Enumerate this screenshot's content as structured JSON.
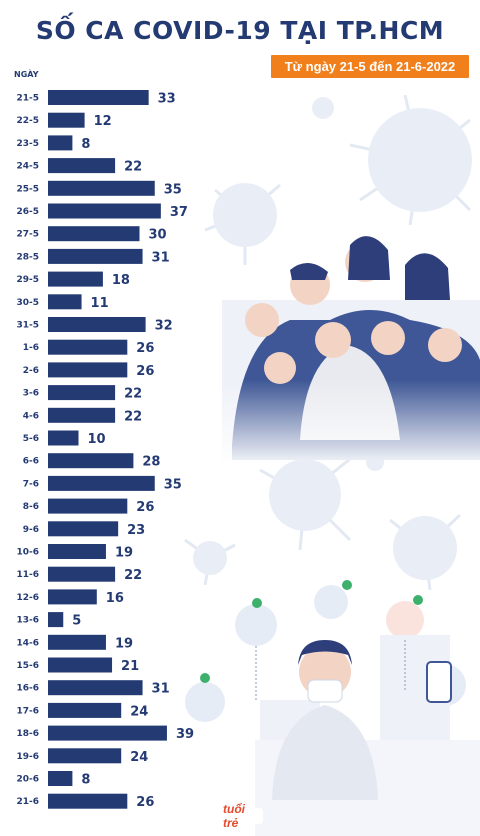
{
  "header": {
    "title": "SỐ CA COVID-19 TẠI TP.HCM",
    "subtitle": "Từ ngày 21-5 đến 21-6-2022",
    "axis_label": "NGÀY"
  },
  "footer": {
    "logo_text": "tuổi trẻ"
  },
  "colors": {
    "bar": "#243a73",
    "title": "#243a73",
    "subtitle_bg": "#f07f1c",
    "illustration": "#dfe6f2"
  },
  "chart_data": {
    "type": "bar",
    "orientation": "horizontal",
    "title": "SỐ CA COVID-19 TẠI TP.HCM",
    "subtitle": "Từ ngày 21-5 đến 21-6-2022",
    "ylabel": "NGÀY",
    "xlabel": "",
    "grid": false,
    "data_labels": true,
    "categories": [
      "21-5",
      "22-5",
      "23-5",
      "24-5",
      "25-5",
      "26-5",
      "27-5",
      "28-5",
      "29-5",
      "30-5",
      "31-5",
      "1-6",
      "2-6",
      "3-6",
      "4-6",
      "5-6",
      "6-6",
      "7-6",
      "8-6",
      "9-6",
      "10-6",
      "11-6",
      "12-6",
      "13-6",
      "14-6",
      "15-6",
      "16-6",
      "17-6",
      "18-6",
      "19-6",
      "20-6",
      "21-6"
    ],
    "values": [
      33,
      12,
      8,
      22,
      35,
      37,
      30,
      31,
      18,
      11,
      32,
      26,
      26,
      22,
      22,
      10,
      28,
      35,
      26,
      23,
      19,
      22,
      16,
      5,
      19,
      21,
      31,
      24,
      39,
      24,
      8,
      26
    ]
  }
}
